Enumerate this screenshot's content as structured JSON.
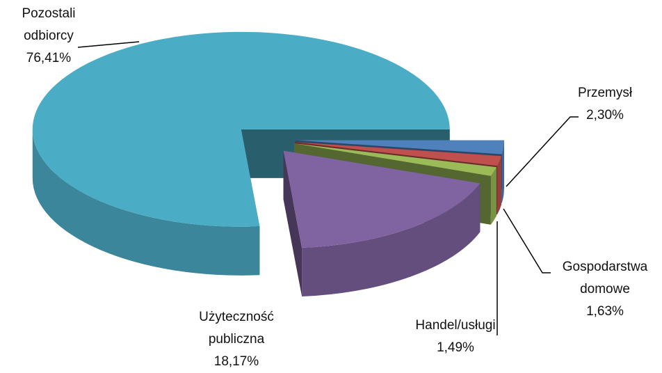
{
  "chart_data": {
    "type": "pie3d",
    "categories": [
      "Przemysł",
      "Gospodarstwa domowe",
      "Handel/usługi",
      "Użyteczność publiczna",
      "Pozostali odbiorcy"
    ],
    "values": [
      2.3,
      1.63,
      1.49,
      18.17,
      76.41
    ],
    "value_labels": [
      "2,30%",
      "1,63%",
      "1,49%",
      "18,17%",
      "76,41%"
    ],
    "colors": [
      "#4f81bd",
      "#c0504d",
      "#9bbb59",
      "#8064a2",
      "#4bacc6"
    ]
  }
}
